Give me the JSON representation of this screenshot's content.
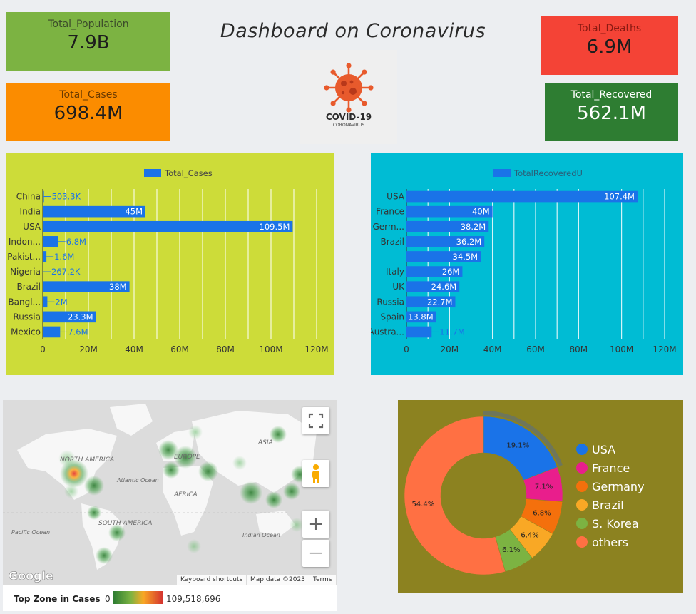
{
  "dashboard": {
    "title": "Dashboard on Coronavirus"
  },
  "kpis": {
    "total_population": {
      "label": "Total_Population",
      "value": "7.9B"
    },
    "total_cases": {
      "label": "Total_Cases",
      "value": "698.4M"
    },
    "total_deaths": {
      "label": "Total_Deaths",
      "value": "6.9M"
    },
    "total_recovered": {
      "label": "Total_Recovered",
      "value": "562.1M"
    }
  },
  "logo": {
    "title": "COVID-19",
    "subtitle": "CORONAVIRUS"
  },
  "colors": {
    "population": "#7cb342",
    "cases": "#fb8c00",
    "deaths": "#f44336",
    "recovered": "#2e7d32",
    "bar": "#1a73e8",
    "cases_panel": "#cddc39",
    "recovered_panel": "#00bcd4",
    "pie_panel": "#8c8220"
  },
  "chart_data": [
    {
      "type": "bar",
      "orientation": "horizontal",
      "legend": "Total_Cases",
      "categories": [
        "China",
        "India",
        "USA",
        "Indon...",
        "Pakist...",
        "Nigeria",
        "Brazil",
        "Bangl...",
        "Russia",
        "Mexico"
      ],
      "values": [
        503300,
        45000000,
        109500000,
        6800000,
        1600000,
        267200,
        38000000,
        2000000,
        23300000,
        7600000
      ],
      "data_labels": [
        "503.3K",
        "45M",
        "109.5M",
        "6.8M",
        "1.6M",
        "267.2K",
        "38M",
        "2M",
        "23.3M",
        "7.6M"
      ],
      "x_ticks": [
        "0",
        "20M",
        "40M",
        "60M",
        "80M",
        "100M",
        "120M"
      ],
      "xlim": [
        0,
        120000000
      ],
      "grid": true,
      "legend_position": "top"
    },
    {
      "type": "bar",
      "orientation": "horizontal",
      "legend": "TotalRecoveredU",
      "categories": [
        "USA",
        "France",
        "Germ...",
        "Brazil",
        "",
        "Italy",
        "UK",
        "Russia",
        "Spain",
        "Austra..."
      ],
      "values": [
        107400000,
        40000000,
        38200000,
        36200000,
        34500000,
        26000000,
        24600000,
        22700000,
        13800000,
        11700000
      ],
      "data_labels": [
        "107.4M",
        "40M",
        "38.2M",
        "36.2M",
        "34.5M",
        "26M",
        "24.6M",
        "22.7M",
        "13.8M",
        "11.7M"
      ],
      "x_ticks": [
        "0",
        "20M",
        "40M",
        "60M",
        "80M",
        "100M",
        "120M"
      ],
      "xlim": [
        0,
        120000000
      ],
      "grid": true,
      "legend_position": "top"
    },
    {
      "type": "pie",
      "donut": true,
      "labels": [
        "USA",
        "France",
        "Germany",
        "Brazil",
        "S. Korea",
        "others"
      ],
      "values": [
        19.1,
        7.1,
        6.8,
        6.4,
        6.1,
        54.4
      ],
      "data_labels": [
        "19.1%",
        "7.1%",
        "6.8%",
        "6.4%",
        "6.1%",
        "54.4%"
      ],
      "colors": [
        "#1a73e8",
        "#e91e8c",
        "#f4700c",
        "#f9a825",
        "#7cb342",
        "#ff7043"
      ],
      "legend_position": "right"
    }
  ],
  "map": {
    "continents": [
      "NORTH AMERICA",
      "EUROPE",
      "ASIA",
      "AFRICA",
      "SOUTH AMERICA"
    ],
    "oceans": [
      "Atlantic Ocean",
      "Pacific Ocean",
      "Indian Ocean"
    ],
    "brand": "Google",
    "attributions": [
      "Keyboard shortcuts",
      "Map data ©2023",
      "Terms"
    ],
    "legend": {
      "title": "Top Zone in Cases",
      "min": "0",
      "max": "109,518,696"
    },
    "controls": {
      "fullscreen": "fullscreen-icon",
      "pegman": "pegman-icon",
      "zoom_in": "+",
      "zoom_out": "−"
    }
  }
}
